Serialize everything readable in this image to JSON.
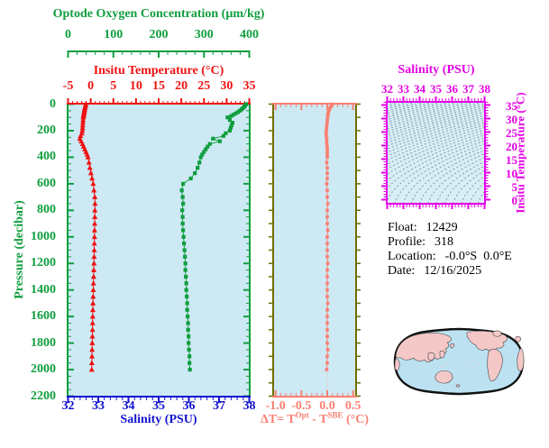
{
  "figure_title": "Argo float profile plot",
  "colors": {
    "green": "#0f9e3e",
    "red": "#ee1111",
    "blue": "#1212cf",
    "magenta": "#e600e6",
    "salmon": "#fa8072",
    "olive": "#6f6f00",
    "plot_bg": "#cde9f4",
    "ts_bg": "#d8eef7",
    "contour": "#8595a5",
    "zero_line": "#d8d8d8",
    "map_sea": "#bce2f2",
    "map_land": "#f5c8c8",
    "map_outline": "#111111",
    "text": "#000000"
  },
  "main_plot": {
    "oxygen_axis": {
      "title": "Optode Oxygen Concentration (µm/kg)",
      "tick_labels": [
        "0",
        "100",
        "200",
        "300",
        "400"
      ],
      "range": [
        0,
        400
      ],
      "minor_step": 20
    },
    "temperature_axis": {
      "title": "Insitu Temperature (°C)",
      "tick_labels": [
        "-5",
        "0",
        "5",
        "10",
        "15",
        "20",
        "25",
        "30",
        "35"
      ],
      "range": [
        -5,
        35
      ],
      "minor_step": 1
    },
    "pressure_axis": {
      "title": "Pressure (decibar)",
      "tick_labels": [
        "0",
        "200",
        "400",
        "600",
        "800",
        "1000",
        "1200",
        "1400",
        "1600",
        "1800",
        "2000",
        "2200"
      ],
      "range": [
        0,
        2200
      ],
      "minor_step": 50
    },
    "salinity_axis": {
      "title": "Salinity (PSU)",
      "tick_labels": [
        "32",
        "33",
        "34",
        "35",
        "36",
        "37",
        "38"
      ],
      "range": [
        32,
        38
      ],
      "minor_step": 0.2
    }
  },
  "delta_panel": {
    "tick_labels": [
      "-1.0",
      "-0.5",
      "0.0",
      "0.5"
    ],
    "range": [
      -1.05,
      0.56
    ],
    "minor_step": 0.1,
    "label_parts": {
      "pre": "ΔT= T",
      "sup1": "Opt",
      "mid": " - T",
      "sup2": "SBE",
      "post": " (°C)"
    }
  },
  "ts_panel": {
    "salinity_title": "Salinity (PSU)",
    "salinity_tick_labels": [
      "32",
      "33",
      "34",
      "35",
      "36",
      "37",
      "38"
    ],
    "salinity_range": [
      32,
      38
    ],
    "temperature_title": "Insitu Temperature (°C)",
    "temperature_tick_labels": [
      "35",
      "30",
      "25",
      "20",
      "15",
      "10",
      "5",
      "0"
    ],
    "content_note": "gray dashed isopycnal (density) contours on light blue background, no profile points visible"
  },
  "info": {
    "float_label": "Float:",
    "float_value": "12429",
    "profile_label": "Profile:",
    "profile_value": "318",
    "location_label": "Location:",
    "location_value": "-0.0°S  0.0°E",
    "date_label": "Date:",
    "date_value": "12/16/2025"
  },
  "chart_data": [
    {
      "id": "profile-vs-pressure",
      "type": "line",
      "y_axis": {
        "label": "Pressure (decibar)",
        "range": [
          0,
          2200
        ],
        "inverted": true,
        "ticks": [
          0,
          200,
          400,
          600,
          800,
          1000,
          1200,
          1400,
          1600,
          1800,
          2000,
          2200
        ]
      },
      "x_axes": [
        {
          "name": "oxygen",
          "label": "Optode Oxygen Concentration (µm/kg)",
          "range": [
            0,
            400
          ],
          "ticks": [
            0,
            100,
            200,
            300,
            400
          ],
          "color": "green",
          "position": "top-floating"
        },
        {
          "name": "temperature",
          "label": "Insitu Temperature (°C)",
          "range": [
            -5,
            35
          ],
          "ticks": [
            -5,
            0,
            5,
            10,
            15,
            20,
            25,
            30,
            35
          ],
          "color": "red",
          "position": "top"
        },
        {
          "name": "salinity",
          "label": "Salinity (PSU)",
          "range": [
            32,
            38
          ],
          "ticks": [
            32,
            33,
            34,
            35,
            36,
            37,
            38
          ],
          "color": "blue",
          "position": "bottom"
        }
      ],
      "pressure": [
        0,
        10,
        20,
        30,
        40,
        50,
        60,
        70,
        80,
        90,
        100,
        120,
        140,
        160,
        180,
        200,
        220,
        240,
        260,
        280,
        300,
        320,
        340,
        360,
        380,
        400,
        440,
        480,
        520,
        560,
        600,
        650,
        700,
        750,
        800,
        850,
        900,
        950,
        1000,
        1050,
        1100,
        1150,
        1200,
        1250,
        1300,
        1350,
        1400,
        1450,
        1500,
        1550,
        1600,
        1650,
        1700,
        1750,
        1800,
        1850,
        1900,
        1950,
        2000
      ],
      "series": [
        {
          "name": "Insitu Temperature (°C)",
          "x_axis": "temperature",
          "color": "red",
          "marker": "triangle",
          "values": [
            -1.1,
            -1.15,
            -1.2,
            -1.3,
            -1.35,
            -1.4,
            -1.45,
            -1.5,
            -1.55,
            -1.6,
            -1.62,
            -1.68,
            -1.72,
            -1.76,
            -1.8,
            -1.85,
            -1.95,
            -2.25,
            -2.4,
            -2.1,
            -1.8,
            -1.55,
            -1.3,
            -1.05,
            -0.8,
            -0.6,
            -0.38,
            -0.18,
            0.05,
            0.3,
            0.55,
            0.72,
            0.9,
            0.95,
            0.92,
            0.9,
            0.88,
            0.85,
            0.83,
            0.8,
            0.78,
            0.75,
            0.72,
            0.68,
            0.65,
            0.6,
            0.57,
            0.54,
            0.5,
            0.47,
            0.44,
            0.42,
            0.4,
            0.37,
            0.34,
            0.31,
            0.28,
            0.25,
            0.22
          ]
        },
        {
          "name": "Optode Oxygen Concentration (µm/kg)",
          "x_axis": "oxygen",
          "color": "green",
          "marker": "square",
          "values": [
            393,
            391,
            389,
            386,
            383,
            379,
            375,
            370,
            365,
            360,
            352,
            357,
            363,
            361,
            359,
            357,
            348,
            343,
            320,
            335,
            313,
            308,
            304,
            300,
            296,
            293,
            290,
            286,
            280,
            271,
            254,
            251,
            253,
            254,
            252,
            253,
            253,
            254,
            255,
            256,
            257,
            258,
            259,
            259,
            260,
            261,
            261,
            262,
            263,
            263,
            264,
            265,
            265,
            266,
            266,
            267,
            268,
            268,
            269
          ]
        }
      ]
    },
    {
      "id": "delta-t-vs-pressure",
      "type": "line",
      "xlabel": "ΔT= T^Opt - T^SBE (°C)",
      "x_range": [
        -1.05,
        0.56
      ],
      "x_ticks": [
        -1.0,
        -0.5,
        0.0,
        0.5
      ],
      "pressure": [
        0,
        10,
        20,
        30,
        40,
        50,
        60,
        70,
        80,
        90,
        100,
        120,
        140,
        160,
        180,
        200,
        220,
        240,
        260,
        280,
        300,
        320,
        340,
        360,
        380,
        400,
        440,
        480,
        520,
        560,
        600,
        650,
        700,
        750,
        800,
        850,
        900,
        950,
        1000,
        1050,
        1100,
        1150,
        1200,
        1250,
        1300,
        1350,
        1400,
        1450,
        1500,
        1550,
        1600,
        1650,
        1700,
        1750,
        1800,
        1850,
        1900,
        1950,
        2000
      ],
      "series": [
        {
          "name": "ΔT",
          "color": "salmon",
          "marker": "square",
          "values": [
            0.1,
            0.09,
            0.07,
            0.05,
            0.04,
            0.03,
            0.02,
            0.02,
            0.01,
            0.01,
            0.01,
            0.0,
            0.0,
            -0.01,
            -0.01,
            -0.02,
            -0.02,
            -0.02,
            -0.01,
            -0.01,
            -0.01,
            0.0,
            0.0,
            0.0,
            0.0,
            0.0,
            -0.01,
            0.0,
            0.0,
            0.0,
            -0.01,
            0.0,
            0.0,
            0.01,
            0.0,
            0.0,
            0.0,
            0.01,
            0.0,
            0.0,
            0.0,
            0.0,
            0.01,
            0.0,
            0.0,
            0.0,
            0.0,
            0.0,
            0.01,
            0.0,
            0.0,
            0.0,
            0.0,
            0.0,
            0.0,
            0.01,
            0.0,
            0.0,
            -0.01
          ]
        }
      ]
    },
    {
      "id": "ts-diagram",
      "type": "line",
      "xlabel": "Salinity (PSU)",
      "x_range": [
        32,
        38
      ],
      "ylabel": "Insitu Temperature (°C)",
      "y_range": [
        -1.5,
        36.3
      ],
      "y_ticks": [
        0,
        5,
        10,
        15,
        20,
        25,
        30,
        35
      ],
      "series": [],
      "annotations": "background grid of dashed gray isopycnal contours; no T-S data points visible"
    }
  ]
}
